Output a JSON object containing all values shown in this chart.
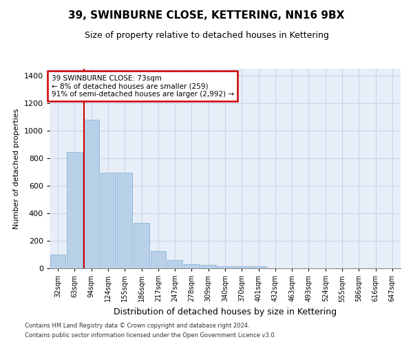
{
  "title": "39, SWINBURNE CLOSE, KETTERING, NN16 9BX",
  "subtitle": "Size of property relative to detached houses in Kettering",
  "xlabel": "Distribution of detached houses by size in Kettering",
  "ylabel": "Number of detached properties",
  "categories": [
    "32sqm",
    "63sqm",
    "94sqm",
    "124sqm",
    "155sqm",
    "186sqm",
    "217sqm",
    "247sqm",
    "278sqm",
    "309sqm",
    "340sqm",
    "370sqm",
    "401sqm",
    "432sqm",
    "463sqm",
    "493sqm",
    "524sqm",
    "555sqm",
    "586sqm",
    "616sqm",
    "647sqm"
  ],
  "values": [
    100,
    845,
    1080,
    695,
    695,
    330,
    125,
    60,
    30,
    25,
    15,
    15,
    15,
    0,
    0,
    0,
    0,
    0,
    0,
    0,
    0
  ],
  "bar_color": "#b8d0e8",
  "bar_edge_color": "#8ab4d4",
  "red_line_x": 1.575,
  "annotation_text": "39 SWINBURNE CLOSE: 73sqm\n← 8% of detached houses are smaller (259)\n91% of semi-detached houses are larger (2,992) →",
  "annotation_box_color": "#ffffff",
  "annotation_border_color": "#cc0000",
  "vline_color": "#cc0000",
  "grid_color": "#c8d4e4",
  "background_color": "#e8eef8",
  "footnote1": "Contains HM Land Registry data © Crown copyright and database right 2024.",
  "footnote2": "Contains public sector information licensed under the Open Government Licence v3.0.",
  "ylim": [
    0,
    1450
  ],
  "title_fontsize": 11,
  "subtitle_fontsize": 9,
  "ylabel_fontsize": 8,
  "xlabel_fontsize": 9,
  "tick_fontsize": 7,
  "annot_fontsize": 7.5
}
